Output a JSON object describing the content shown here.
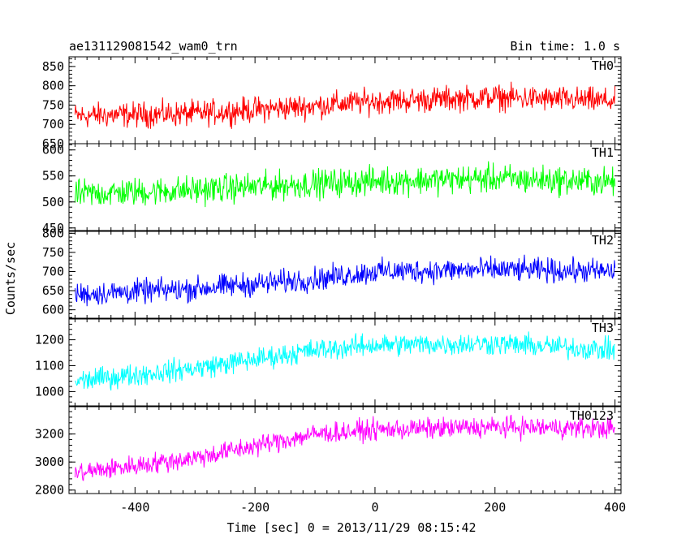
{
  "header": {
    "title": "ae131129081542_wam0_trn",
    "bin_time": "Bin time: 1.0 s"
  },
  "axes": {
    "xlabel": "Time [sec] 0 = 2013/11/29 08:15:42",
    "ylabel": "Counts/sec"
  },
  "chart_data": {
    "type": "line",
    "title": "ae131129081542_wam0_trn",
    "xlabel": "Time [sec] 0 = 2013/11/29 08:15:42",
    "ylabel": "Counts/sec",
    "xlim": [
      -510,
      410
    ],
    "xticks": [
      -400,
      -200,
      0,
      200,
      400
    ],
    "x_range_data": [
      -500,
      400
    ],
    "x_step": 1.0,
    "grid": false,
    "panels": [
      {
        "name": "TH0",
        "color": "#ff0000",
        "ylim": [
          650,
          875
        ],
        "yticks": [
          650,
          700,
          750,
          800,
          850
        ],
        "trend": [
          [
            -500,
            722
          ],
          [
            -300,
            728
          ],
          [
            -100,
            748
          ],
          [
            0,
            760
          ],
          [
            200,
            770
          ],
          [
            400,
            760
          ]
        ],
        "noise_amp": 42
      },
      {
        "name": "TH1",
        "color": "#00ff00",
        "ylim": [
          445,
          612
        ],
        "yticks": [
          450,
          500,
          550,
          600
        ],
        "trend": [
          [
            -500,
            515
          ],
          [
            -300,
            523
          ],
          [
            -100,
            535
          ],
          [
            0,
            540
          ],
          [
            200,
            545
          ],
          [
            400,
            538
          ]
        ],
        "noise_amp": 35
      },
      {
        "name": "TH2",
        "color": "#0000ff",
        "ylim": [
          578,
          805
        ],
        "yticks": [
          600,
          650,
          700,
          750,
          800
        ],
        "trend": [
          [
            -500,
            640
          ],
          [
            -300,
            655
          ],
          [
            -100,
            680
          ],
          [
            0,
            700
          ],
          [
            200,
            705
          ],
          [
            400,
            700
          ]
        ],
        "noise_amp": 40
      },
      {
        "name": "TH3",
        "color": "#00ffff",
        "ylim": [
          945,
          1280
        ],
        "yticks": [
          1000,
          1100,
          1200
        ],
        "trend": [
          [
            -500,
            1040
          ],
          [
            -300,
            1090
          ],
          [
            -100,
            1160
          ],
          [
            0,
            1180
          ],
          [
            200,
            1185
          ],
          [
            400,
            1160
          ]
        ],
        "noise_amp": 55
      },
      {
        "name": "TH0123",
        "color": "#ff00ff",
        "ylim": [
          2775,
          3395
        ],
        "yticks": [
          2800,
          3000,
          3200
        ],
        "trend": [
          [
            -500,
            2920
          ],
          [
            -300,
            3030
          ],
          [
            -100,
            3200
          ],
          [
            0,
            3230
          ],
          [
            200,
            3250
          ],
          [
            400,
            3240
          ]
        ],
        "noise_amp": 95
      }
    ]
  }
}
